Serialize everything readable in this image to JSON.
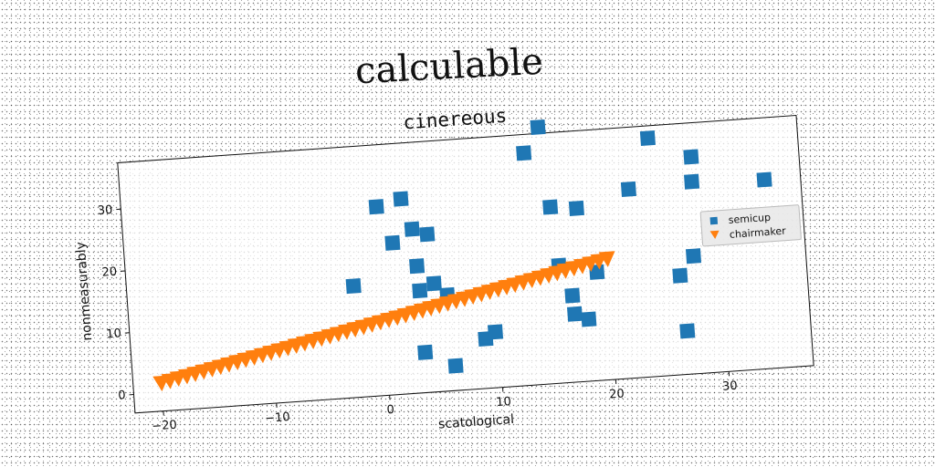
{
  "title": "calculable",
  "chart_data": {
    "type": "scatter",
    "title": "cinereous",
    "xlabel": "scatological",
    "ylabel": "nonmeasurably",
    "xlim": [
      -22.5,
      37.5
    ],
    "ylim": [
      -3,
      37.5
    ],
    "xticks": [
      -20,
      -10,
      0,
      10,
      20,
      30
    ],
    "yticks": [
      0,
      10,
      20,
      30
    ],
    "grid": false,
    "legend_position": "right",
    "series": [
      {
        "name": "semicup",
        "marker": "square",
        "color": "#1f77b4",
        "points": [
          [
            -2.5,
            15
          ],
          [
            0,
            27.5
          ],
          [
            1.2,
            21.5
          ],
          [
            2.2,
            28.5
          ],
          [
            3,
            23.5
          ],
          [
            3.2,
            17.5
          ],
          [
            3.3,
            13.5
          ],
          [
            4.3,
            22.5
          ],
          [
            4.6,
            14.5
          ],
          [
            5.7,
            12.5
          ],
          [
            3.4,
            3.5
          ],
          [
            6,
            1
          ],
          [
            8.8,
            5
          ],
          [
            9.7,
            6
          ],
          [
            13.3,
            34.5
          ],
          [
            14.7,
            38.5
          ],
          [
            15.3,
            25.5
          ],
          [
            15.7,
            16
          ],
          [
            16.7,
            11
          ],
          [
            16.8,
            8
          ],
          [
            17.6,
            25
          ],
          [
            18,
            7
          ],
          [
            19,
            14.5
          ],
          [
            22.3,
            27.5
          ],
          [
            24.3,
            35.5
          ],
          [
            26.3,
            13
          ],
          [
            26.6,
            4
          ],
          [
            27.6,
            16
          ],
          [
            27.9,
            28
          ],
          [
            28,
            32
          ],
          [
            34.3,
            27.5
          ]
        ]
      },
      {
        "name": "chairmaker",
        "marker": "triangle-down",
        "color": "#ff7f0e",
        "linear": {
          "x_start": -20,
          "x_end": 20,
          "y_start": 1.5,
          "y_end": 16.5,
          "count": 54
        }
      }
    ]
  }
}
